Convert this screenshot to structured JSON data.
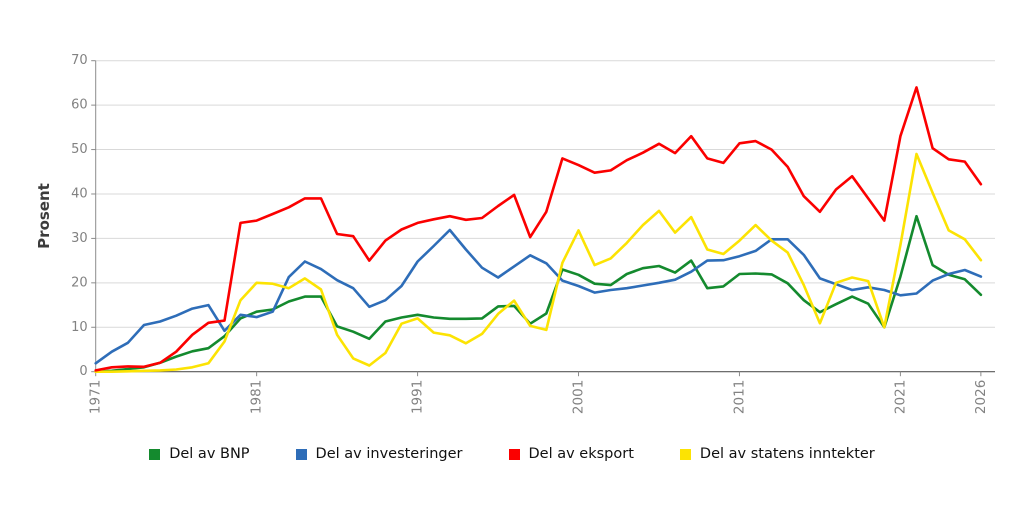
{
  "figure": {
    "background": "#ffffff"
  },
  "chart_data": {
    "type": "line",
    "title": "",
    "xlabel": "",
    "ylabel": "Prosent",
    "ylim": [
      0,
      70
    ],
    "grid": "horizontal",
    "legend_position": "bottom",
    "grid_color": "#d9d9d9",
    "axis_color": "#595959",
    "tick_color": "#8c8c8c",
    "tick_label_color": "#828282",
    "y_ticks": [
      0,
      10,
      20,
      30,
      40,
      50,
      60,
      70
    ],
    "x_ticks": [
      1971,
      1981,
      1991,
      2001,
      2011,
      2021,
      2026
    ],
    "years": [
      1971,
      1972,
      1973,
      1974,
      1975,
      1976,
      1977,
      1978,
      1979,
      1980,
      1981,
      1982,
      1983,
      1984,
      1985,
      1986,
      1987,
      1988,
      1989,
      1990,
      1991,
      1992,
      1993,
      1994,
      1995,
      1996,
      1997,
      1998,
      1999,
      2000,
      2001,
      2002,
      2003,
      2004,
      2005,
      2006,
      2007,
      2008,
      2009,
      2010,
      2011,
      2012,
      2013,
      2014,
      2015,
      2016,
      2017,
      2018,
      2019,
      2020,
      2021,
      2022,
      2023,
      2024,
      2025,
      2026
    ],
    "series": [
      {
        "name": "Del av BNP",
        "color": "#148a2e",
        "values": [
          0.0,
          0.2,
          0.6,
          1.0,
          2.0,
          3.4,
          4.6,
          5.3,
          8.0,
          12.0,
          13.5,
          14.0,
          15.8,
          16.9,
          16.9,
          10.2,
          9.0,
          7.4,
          11.3,
          12.2,
          12.8,
          12.2,
          11.9,
          11.9,
          12.0,
          14.7,
          14.8,
          10.8,
          13.1,
          23.0,
          21.8,
          19.8,
          19.5,
          22.0,
          23.3,
          23.8,
          22.3,
          25.0,
          18.8,
          19.2,
          22.0,
          22.1,
          21.9,
          19.9,
          16.1,
          13.4,
          15.2,
          16.9,
          15.3,
          10.0,
          21.4,
          35.0,
          24.0,
          21.8,
          20.8,
          17.3
        ]
      },
      {
        "name": "Del av investeringer",
        "color": "#2e6db8",
        "values": [
          1.9,
          4.5,
          6.5,
          10.5,
          11.3,
          12.6,
          14.2,
          15.0,
          9.2,
          12.8,
          12.3,
          13.5,
          21.3,
          24.8,
          23.1,
          20.6,
          18.8,
          14.6,
          16.1,
          19.3,
          24.8,
          28.3,
          31.9,
          27.5,
          23.4,
          21.2,
          23.7,
          26.2,
          24.4,
          20.5,
          19.3,
          17.8,
          18.4,
          18.8,
          19.4,
          20.0,
          20.7,
          22.5,
          25.0,
          25.1,
          26.0,
          27.2,
          29.8,
          29.8,
          26.3,
          21.0,
          19.7,
          18.4,
          19.0,
          18.4,
          17.2,
          17.6,
          20.5,
          22.0,
          22.9,
          21.4
        ]
      },
      {
        "name": "Del av eksport",
        "color": "#fb0000",
        "values": [
          0.3,
          1.0,
          1.2,
          1.1,
          2.0,
          4.5,
          8.3,
          11.0,
          11.5,
          33.5,
          34.0,
          35.5,
          37.0,
          39.0,
          39.0,
          31.0,
          30.5,
          25.0,
          29.5,
          32.0,
          33.5,
          34.3,
          35.0,
          34.2,
          34.6,
          37.3,
          39.8,
          30.3,
          36.0,
          48.0,
          46.5,
          44.8,
          45.3,
          47.6,
          49.3,
          51.3,
          49.2,
          53.0,
          48.0,
          47.0,
          51.4,
          51.9,
          50.0,
          46.1,
          39.5,
          36.0,
          41.0,
          44.0,
          39.0,
          34.0,
          53.0,
          64.0,
          50.3,
          47.8,
          47.3,
          42.2
        ]
      },
      {
        "name": "Del av statens inntekter",
        "color": "#fce303",
        "values": [
          0.0,
          0.0,
          0.1,
          0.2,
          0.3,
          0.5,
          1.0,
          1.9,
          6.8,
          16.1,
          20.0,
          19.8,
          18.8,
          21.0,
          18.5,
          8.3,
          3.0,
          1.4,
          4.2,
          10.8,
          12.0,
          8.8,
          8.2,
          6.4,
          8.5,
          13.0,
          16.0,
          10.3,
          9.4,
          24.5,
          31.8,
          24.0,
          25.5,
          29.0,
          33.0,
          36.2,
          31.3,
          34.8,
          27.5,
          26.5,
          29.5,
          33.0,
          29.5,
          26.8,
          19.5,
          10.9,
          20.0,
          21.2,
          20.4,
          10.0,
          28.5,
          49.0,
          40.3,
          31.8,
          29.8,
          25.1
        ]
      }
    ]
  }
}
